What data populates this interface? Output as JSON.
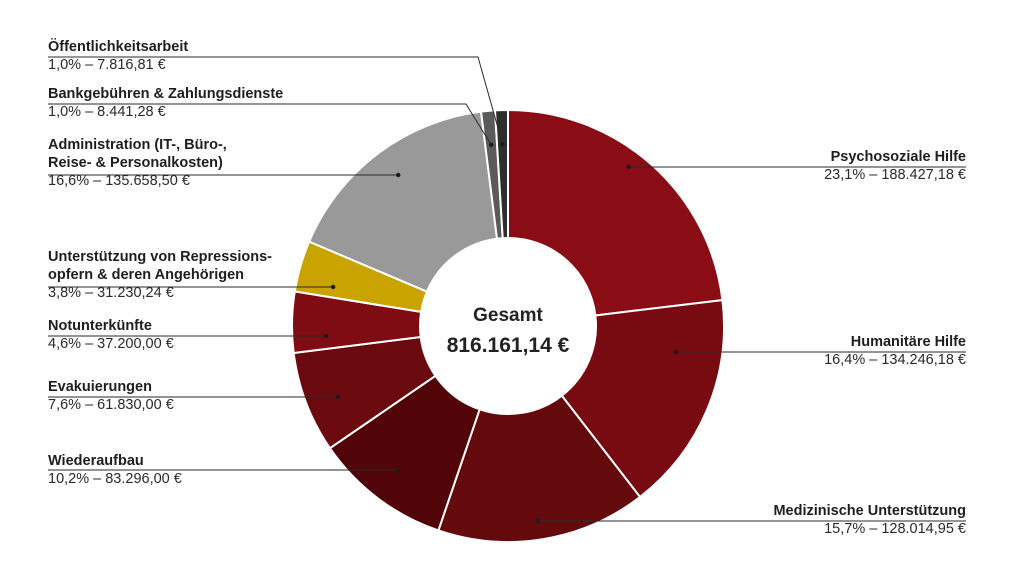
{
  "chart_data": {
    "type": "pie",
    "variant": "donut",
    "title": "",
    "center": {
      "title": "Gesamt",
      "value": "816.161,14 €"
    },
    "slices": [
      {
        "name": "Psychosoziale Hilfe",
        "percent": 23.1,
        "value": 188427.18,
        "label_value": "23,1% – 188.427,18 €",
        "color": "#8a0d16",
        "side": "right"
      },
      {
        "name": "Humanitäre Hilfe",
        "percent": 16.4,
        "value": 134246.18,
        "label_value": "16,4% – 134.246,18 €",
        "color": "#770b11",
        "side": "right"
      },
      {
        "name": "Medizinische Unterstützung",
        "percent": 15.7,
        "value": 128014.95,
        "label_value": "15,7% – 128.014,95 €",
        "color": "#640a0c",
        "side": "right"
      },
      {
        "name": "Wiederaufbau",
        "percent": 10.2,
        "value": 83296.0,
        "label_value": "10,2% – 83.296,00 €",
        "color": "#520508",
        "side": "left"
      },
      {
        "name": "Evakuierungen",
        "percent": 7.6,
        "value": 61830.0,
        "label_value": "7,6% – 61.830,00 €",
        "color": "#6a0a0e",
        "side": "left"
      },
      {
        "name": "Notunterkünfte",
        "percent": 4.6,
        "value": 37200.0,
        "label_value": "4,6% – 37.200,00 €",
        "color": "#7f0c12",
        "side": "left"
      },
      {
        "name": "Unterstützung von Repressions-\nopfern & deren Angehörigen",
        "percent": 3.8,
        "value": 31230.24,
        "label_value": "3,8% – 31.230,24 €",
        "color": "#c9a300",
        "side": "left"
      },
      {
        "name": "Administration (IT-, Büro-,\nReise- & Personalkosten)",
        "percent": 16.6,
        "value": 135658.5,
        "label_value": "16,6% – 135.658,50 €",
        "color": "#999999",
        "side": "left"
      },
      {
        "name": "Bankgebühren & Zahlungsdienste",
        "percent": 1.0,
        "value": 8441.28,
        "label_value": "1,0% – 8.441,28 €",
        "color": "#5a5a5a",
        "side": "left"
      },
      {
        "name": "Öffentlichkeitsarbeit",
        "percent": 1.0,
        "value": 7816.81,
        "label_value": "1,0% – 7.816,81 €",
        "color": "#2e2e2e",
        "side": "left"
      }
    ]
  }
}
